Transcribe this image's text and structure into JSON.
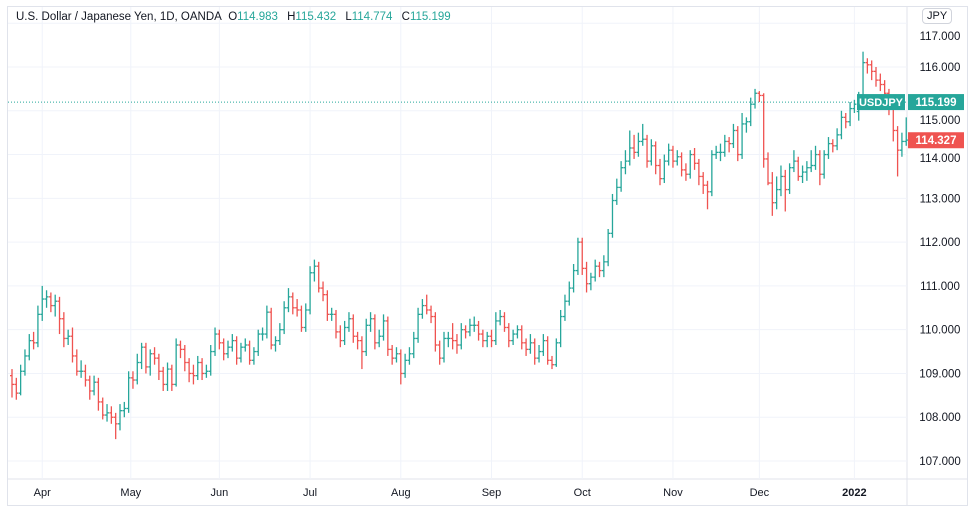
{
  "header": {
    "symbol_title": "U.S. Dollar / Japanese Yen, 1D, OANDA",
    "open_key": "O",
    "open": "114.983",
    "high_key": "H",
    "high": "115.432",
    "low_key": "L",
    "low": "114.774",
    "close_key": "C",
    "close": "115.199"
  },
  "currency_button": "JPY",
  "colors": {
    "up": "#26a69a",
    "down": "#ef5350",
    "grid": "#f0f3fa",
    "text": "#131722"
  },
  "chart_data": {
    "type": "ohlc",
    "title": "U.S. Dollar / Japanese Yen, 1D, OANDA",
    "ylim": [
      106.75,
      117.2
    ],
    "y_ticks": [
      "107.000",
      "108.000",
      "109.000",
      "110.000",
      "111.000",
      "112.000",
      "113.000",
      "114.000",
      "115.000",
      "116.000",
      "117.000"
    ],
    "x_ticks": [
      {
        "label": "Apr",
        "bar": 7
      },
      {
        "label": "May",
        "bar": 27.5
      },
      {
        "label": "Jun",
        "bar": 48
      },
      {
        "label": "Jul",
        "bar": 69
      },
      {
        "label": "Aug",
        "bar": 90
      },
      {
        "label": "Sep",
        "bar": 111
      },
      {
        "label": "Oct",
        "bar": 132
      },
      {
        "label": "Nov",
        "bar": 153
      },
      {
        "label": "Dec",
        "bar": 173
      },
      {
        "label": "2022",
        "bar": 195,
        "bold": true
      }
    ],
    "grid": true,
    "price_lines": [
      {
        "label": "USDJPY",
        "value": "115.199",
        "color": "#26a69a",
        "dotted": true
      },
      {
        "label": "",
        "value": "114.327",
        "color": "#ef5350",
        "dotted": false
      }
    ],
    "ohlc": [
      [
        108.95,
        109.1,
        108.45,
        108.75
      ],
      [
        108.75,
        108.9,
        108.4,
        108.55
      ],
      [
        108.55,
        109.2,
        108.5,
        109.05
      ],
      [
        109.05,
        109.55,
        108.95,
        109.4
      ],
      [
        109.4,
        109.9,
        109.3,
        109.75
      ],
      [
        109.75,
        109.95,
        109.55,
        109.7
      ],
      [
        109.7,
        110.55,
        109.6,
        110.35
      ],
      [
        110.35,
        111.0,
        110.2,
        110.7
      ],
      [
        110.7,
        110.9,
        110.5,
        110.75
      ],
      [
        110.75,
        110.85,
        110.4,
        110.55
      ],
      [
        110.55,
        110.8,
        110.3,
        110.65
      ],
      [
        110.65,
        110.75,
        109.9,
        110.25
      ],
      [
        110.25,
        110.4,
        109.6,
        109.8
      ],
      [
        109.8,
        110.0,
        109.65,
        109.85
      ],
      [
        109.85,
        110.05,
        109.25,
        109.4
      ],
      [
        109.4,
        109.55,
        108.95,
        109.05
      ],
      [
        109.05,
        109.3,
        108.9,
        109.05
      ],
      [
        109.05,
        109.2,
        108.7,
        108.85
      ],
      [
        108.85,
        108.95,
        108.4,
        108.6
      ],
      [
        108.6,
        108.95,
        108.5,
        108.8
      ],
      [
        108.8,
        108.9,
        108.15,
        108.35
      ],
      [
        108.35,
        108.45,
        107.95,
        108.05
      ],
      [
        108.05,
        108.3,
        107.9,
        108.1
      ],
      [
        108.1,
        108.25,
        107.85,
        108.0
      ],
      [
        108.0,
        108.1,
        107.5,
        107.85
      ],
      [
        107.85,
        108.3,
        107.7,
        108.15
      ],
      [
        108.15,
        108.35,
        108.0,
        108.2
      ],
      [
        108.2,
        109.05,
        108.1,
        108.9
      ],
      [
        108.9,
        109.05,
        108.65,
        108.85
      ],
      [
        108.85,
        109.45,
        108.75,
        109.25
      ],
      [
        109.25,
        109.7,
        109.1,
        109.6
      ],
      [
        109.6,
        109.7,
        109.0,
        109.15
      ],
      [
        109.15,
        109.55,
        108.95,
        109.45
      ],
      [
        109.45,
        109.6,
        109.2,
        109.35
      ],
      [
        109.35,
        109.45,
        108.85,
        109.05
      ],
      [
        109.05,
        109.15,
        108.6,
        108.75
      ],
      [
        108.75,
        109.25,
        108.6,
        109.1
      ],
      [
        109.1,
        109.2,
        108.6,
        108.75
      ],
      [
        108.75,
        109.8,
        108.7,
        109.65
      ],
      [
        109.65,
        109.75,
        109.35,
        109.55
      ],
      [
        109.55,
        109.65,
        109.05,
        109.25
      ],
      [
        109.25,
        109.35,
        108.8,
        109.0
      ],
      [
        109.0,
        109.2,
        108.75,
        108.95
      ],
      [
        108.95,
        109.4,
        108.85,
        109.25
      ],
      [
        109.25,
        109.35,
        108.85,
        109.0
      ],
      [
        109.0,
        109.2,
        108.9,
        109.05
      ],
      [
        109.05,
        109.65,
        108.95,
        109.5
      ],
      [
        109.5,
        110.05,
        109.4,
        109.9
      ],
      [
        109.9,
        110.0,
        109.55,
        109.7
      ],
      [
        109.7,
        109.8,
        109.3,
        109.45
      ],
      [
        109.45,
        109.75,
        109.35,
        109.6
      ],
      [
        109.6,
        109.9,
        109.5,
        109.75
      ],
      [
        109.75,
        109.85,
        109.2,
        109.35
      ],
      [
        109.35,
        109.7,
        109.25,
        109.6
      ],
      [
        109.6,
        109.8,
        109.5,
        109.65
      ],
      [
        109.65,
        109.75,
        109.2,
        109.3
      ],
      [
        109.3,
        109.6,
        109.2,
        109.5
      ],
      [
        109.5,
        110.0,
        109.4,
        109.9
      ],
      [
        109.9,
        110.05,
        109.75,
        109.9
      ],
      [
        109.9,
        110.55,
        109.8,
        110.4
      ],
      [
        110.4,
        110.5,
        109.55,
        109.65
      ],
      [
        109.65,
        109.85,
        109.5,
        109.75
      ],
      [
        109.75,
        110.15,
        109.65,
        110.0
      ],
      [
        110.0,
        110.65,
        109.9,
        110.5
      ],
      [
        110.5,
        110.95,
        110.4,
        110.75
      ],
      [
        110.75,
        110.85,
        110.35,
        110.5
      ],
      [
        110.5,
        110.7,
        110.3,
        110.45
      ],
      [
        110.45,
        110.55,
        109.95,
        110.05
      ],
      [
        110.05,
        110.6,
        109.95,
        110.45
      ],
      [
        110.45,
        111.45,
        110.35,
        111.3
      ],
      [
        111.3,
        111.6,
        111.1,
        111.45
      ],
      [
        111.45,
        111.55,
        110.85,
        110.95
      ],
      [
        110.95,
        111.1,
        110.65,
        110.8
      ],
      [
        110.8,
        110.9,
        110.2,
        110.35
      ],
      [
        110.35,
        110.5,
        110.2,
        110.35
      ],
      [
        110.35,
        110.45,
        109.8,
        109.95
      ],
      [
        109.95,
        110.1,
        109.6,
        109.75
      ],
      [
        109.75,
        110.2,
        109.65,
        110.05
      ],
      [
        110.05,
        110.4,
        109.95,
        110.25
      ],
      [
        110.25,
        110.35,
        109.7,
        109.85
      ],
      [
        109.85,
        109.95,
        109.55,
        109.75
      ],
      [
        109.75,
        109.85,
        109.1,
        109.5
      ],
      [
        109.5,
        110.25,
        109.4,
        110.1
      ],
      [
        110.1,
        110.4,
        109.95,
        110.25
      ],
      [
        110.25,
        110.35,
        109.55,
        109.7
      ],
      [
        109.7,
        110.0,
        109.6,
        109.85
      ],
      [
        109.85,
        110.35,
        109.75,
        110.2
      ],
      [
        110.2,
        110.3,
        109.4,
        109.55
      ],
      [
        109.55,
        109.65,
        109.2,
        109.35
      ],
      [
        109.35,
        109.6,
        109.25,
        109.45
      ],
      [
        109.45,
        109.55,
        108.75,
        109.0
      ],
      [
        109.0,
        109.45,
        108.9,
        109.3
      ],
      [
        109.3,
        109.6,
        109.2,
        109.45
      ],
      [
        109.45,
        109.95,
        109.35,
        109.8
      ],
      [
        109.8,
        110.5,
        109.7,
        110.35
      ],
      [
        110.35,
        110.7,
        110.25,
        110.55
      ],
      [
        110.55,
        110.8,
        110.35,
        110.45
      ],
      [
        110.45,
        110.55,
        110.15,
        110.3
      ],
      [
        110.3,
        110.4,
        109.5,
        109.65
      ],
      [
        109.65,
        109.75,
        109.2,
        109.35
      ],
      [
        109.35,
        109.95,
        109.25,
        109.8
      ],
      [
        109.8,
        109.95,
        109.6,
        109.8
      ],
      [
        109.8,
        110.15,
        109.55,
        109.75
      ],
      [
        109.75,
        109.9,
        109.45,
        109.65
      ],
      [
        109.65,
        110.15,
        109.55,
        110.0
      ],
      [
        110.0,
        110.1,
        109.8,
        109.95
      ],
      [
        109.95,
        110.25,
        109.85,
        110.1
      ],
      [
        110.1,
        110.3,
        109.95,
        110.1
      ],
      [
        110.1,
        110.2,
        109.75,
        109.9
      ],
      [
        109.9,
        110.0,
        109.6,
        109.75
      ],
      [
        109.75,
        109.95,
        109.6,
        109.85
      ],
      [
        109.85,
        110.0,
        109.6,
        109.75
      ],
      [
        109.75,
        110.4,
        109.65,
        110.2
      ],
      [
        110.2,
        110.45,
        110.1,
        110.3
      ],
      [
        110.3,
        110.4,
        109.95,
        110.05
      ],
      [
        110.05,
        110.15,
        109.6,
        109.75
      ],
      [
        109.75,
        110.0,
        109.65,
        109.9
      ],
      [
        109.9,
        110.1,
        109.8,
        110.0
      ],
      [
        110.0,
        110.1,
        109.55,
        109.7
      ],
      [
        109.7,
        109.8,
        109.4,
        109.55
      ],
      [
        109.55,
        109.9,
        109.45,
        109.7
      ],
      [
        109.7,
        109.8,
        109.2,
        109.35
      ],
      [
        109.35,
        109.65,
        109.25,
        109.5
      ],
      [
        109.5,
        109.9,
        109.4,
        109.75
      ],
      [
        109.75,
        109.85,
        109.2,
        109.3
      ],
      [
        109.3,
        109.4,
        109.1,
        109.2
      ],
      [
        109.2,
        109.8,
        109.15,
        109.7
      ],
      [
        109.7,
        110.45,
        109.6,
        110.3
      ],
      [
        110.3,
        110.8,
        110.2,
        110.65
      ],
      [
        110.65,
        111.1,
        110.55,
        110.95
      ],
      [
        110.95,
        111.5,
        110.85,
        111.35
      ],
      [
        111.35,
        112.1,
        111.25,
        112.0
      ],
      [
        112.0,
        112.1,
        111.25,
        111.4
      ],
      [
        111.4,
        111.55,
        110.85,
        111.05
      ],
      [
        111.05,
        111.3,
        110.9,
        111.2
      ],
      [
        111.2,
        111.6,
        111.1,
        111.45
      ],
      [
        111.45,
        111.55,
        111.2,
        111.35
      ],
      [
        111.35,
        111.7,
        111.2,
        111.55
      ],
      [
        111.55,
        112.3,
        111.45,
        112.2
      ],
      [
        112.2,
        113.1,
        112.1,
        112.95
      ],
      [
        112.95,
        113.45,
        112.85,
        113.25
      ],
      [
        113.25,
        113.85,
        113.15,
        113.7
      ],
      [
        113.7,
        114.1,
        113.55,
        113.85
      ],
      [
        113.85,
        114.55,
        113.75,
        114.15
      ],
      [
        114.15,
        114.45,
        113.9,
        114.05
      ],
      [
        114.05,
        114.5,
        113.95,
        114.3
      ],
      [
        114.3,
        114.7,
        114.2,
        114.35
      ],
      [
        114.35,
        114.45,
        113.7,
        113.85
      ],
      [
        113.85,
        114.35,
        113.75,
        114.2
      ],
      [
        114.2,
        114.3,
        113.55,
        113.75
      ],
      [
        113.75,
        113.9,
        113.3,
        113.45
      ],
      [
        113.45,
        114.0,
        113.35,
        113.85
      ],
      [
        113.85,
        114.25,
        113.75,
        114.1
      ],
      [
        114.1,
        114.2,
        113.7,
        113.85
      ],
      [
        113.85,
        114.1,
        113.75,
        113.95
      ],
      [
        113.95,
        114.05,
        113.5,
        113.65
      ],
      [
        113.65,
        113.8,
        113.4,
        113.55
      ],
      [
        113.55,
        114.1,
        113.45,
        114.0
      ],
      [
        114.0,
        114.15,
        113.65,
        113.8
      ],
      [
        113.8,
        113.9,
        113.3,
        113.5
      ],
      [
        113.5,
        113.6,
        113.1,
        113.3
      ],
      [
        113.3,
        113.4,
        112.75,
        113.15
      ],
      [
        113.15,
        114.1,
        113.05,
        114.0
      ],
      [
        114.0,
        114.2,
        113.9,
        114.05
      ],
      [
        114.05,
        114.25,
        113.85,
        114.05
      ],
      [
        114.05,
        114.45,
        113.95,
        114.3
      ],
      [
        114.3,
        114.4,
        114.05,
        114.25
      ],
      [
        114.25,
        114.7,
        114.15,
        114.55
      ],
      [
        114.55,
        114.65,
        113.85,
        114.0
      ],
      [
        114.0,
        114.95,
        113.9,
        114.7
      ],
      [
        114.7,
        114.85,
        114.5,
        114.75
      ],
      [
        114.75,
        115.3,
        114.65,
        115.15
      ],
      [
        115.15,
        115.5,
        115.05,
        115.4
      ],
      [
        115.4,
        115.45,
        115.2,
        115.35
      ],
      [
        115.35,
        115.4,
        113.7,
        113.9
      ],
      [
        113.9,
        114.05,
        113.3,
        113.35
      ],
      [
        113.35,
        113.6,
        112.6,
        112.9
      ],
      [
        112.9,
        113.5,
        112.75,
        113.2
      ],
      [
        113.2,
        113.75,
        113.05,
        113.5
      ],
      [
        113.5,
        113.65,
        112.7,
        113.2
      ],
      [
        113.2,
        113.8,
        113.1,
        113.7
      ],
      [
        113.7,
        114.1,
        113.6,
        113.85
      ],
      [
        113.85,
        113.95,
        113.4,
        113.5
      ],
      [
        113.5,
        113.75,
        113.35,
        113.6
      ],
      [
        113.6,
        113.85,
        113.4,
        113.7
      ],
      [
        113.7,
        114.1,
        113.6,
        113.75
      ],
      [
        113.75,
        114.2,
        113.65,
        114.0
      ],
      [
        114.0,
        114.1,
        113.3,
        113.55
      ],
      [
        113.55,
        114.1,
        113.45,
        114.0
      ],
      [
        114.0,
        114.4,
        113.9,
        114.25
      ],
      [
        114.25,
        114.35,
        114.05,
        114.2
      ],
      [
        114.2,
        114.6,
        114.1,
        114.45
      ],
      [
        114.45,
        115.0,
        114.35,
        114.85
      ],
      [
        114.85,
        114.95,
        114.6,
        114.75
      ],
      [
        114.75,
        115.2,
        114.65,
        115.05
      ],
      [
        115.05,
        115.25,
        114.95,
        115.15
      ],
      [
        114.983,
        115.432,
        114.774,
        115.199
      ],
      [
        115.2,
        116.35,
        115.1,
        116.1
      ],
      [
        116.1,
        116.2,
        115.85,
        116.05
      ],
      [
        116.05,
        116.15,
        115.7,
        115.9
      ],
      [
        115.9,
        116.0,
        115.55,
        115.7
      ],
      [
        115.7,
        115.85,
        115.45,
        115.6
      ],
      [
        115.6,
        115.7,
        115.2,
        115.4
      ],
      [
        115.4,
        115.5,
        114.9,
        115.1
      ],
      [
        115.1,
        115.2,
        114.3,
        114.55
      ],
      [
        114.55,
        114.65,
        113.5,
        114.1
      ],
      [
        114.1,
        114.5,
        113.95,
        114.3
      ],
      [
        114.3,
        114.85,
        114.2,
        114.33
      ]
    ]
  }
}
